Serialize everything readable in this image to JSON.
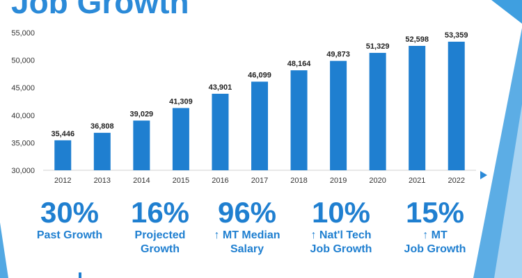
{
  "slide": {
    "title": "Job Growth"
  },
  "chart_data": {
    "type": "bar",
    "title": "Job Growth",
    "categories": [
      "2012",
      "2013",
      "2014",
      "2015",
      "2016",
      "2017",
      "2018",
      "2019",
      "2020",
      "2021",
      "2022"
    ],
    "values": [
      35446,
      36808,
      39029,
      41309,
      43901,
      46099,
      48164,
      49873,
      51329,
      52598,
      53359
    ],
    "value_labels": [
      "35,446",
      "36,808",
      "39,029",
      "41,309",
      "43,901",
      "46,099",
      "48,164",
      "49,873",
      "51,329",
      "52,598",
      "53,359"
    ],
    "ylim": [
      30000,
      55000
    ],
    "yticks": [
      30000,
      35000,
      40000,
      45000,
      50000,
      55000
    ],
    "ytick_labels": [
      "30,000",
      "35,000",
      "40,000",
      "45,000",
      "50,000",
      "55,000"
    ],
    "xlabel": "",
    "ylabel": "",
    "bar_color": "#1f7fd0",
    "grid": false
  },
  "stats": [
    {
      "value": "30%",
      "label": "Past Growth"
    },
    {
      "value": "16%",
      "label": "Projected\nGrowth"
    },
    {
      "value": "96%",
      "label": "↑ MT Median\nSalary"
    },
    {
      "value": "10%",
      "label": "↑ Nat'l Tech\nJob Growth"
    },
    {
      "value": "15%",
      "label": "↑ MT\nJob Growth"
    }
  ],
  "colors": {
    "accent": "#1f7fd0",
    "title": "#2b8ad8",
    "decor_light": "#a9d4f2",
    "decor_dark": "#3f9fe0"
  }
}
